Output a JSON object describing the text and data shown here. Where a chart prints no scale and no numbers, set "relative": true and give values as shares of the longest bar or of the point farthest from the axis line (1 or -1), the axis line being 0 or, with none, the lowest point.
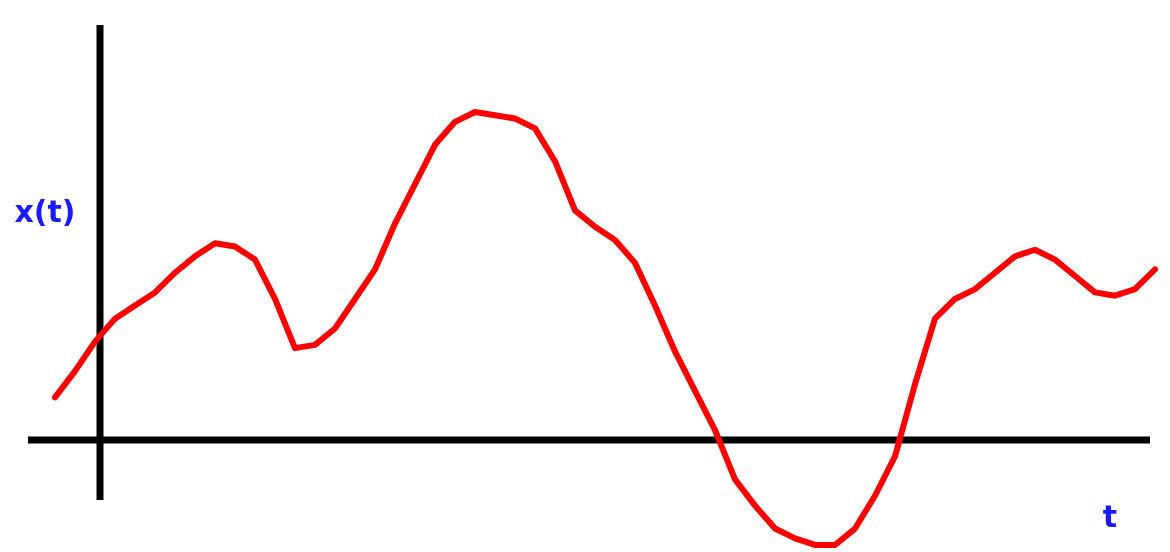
{
  "chart_data": {
    "type": "line",
    "relative": true,
    "xlabel": "t",
    "ylabel": "x(t)",
    "categories": [
      null,
      null,
      null,
      null,
      null,
      null,
      null,
      null,
      null,
      null,
      null,
      null,
      null,
      null,
      null,
      null,
      null,
      null,
      null,
      null,
      null,
      null,
      null,
      null,
      null,
      null,
      null,
      null,
      null,
      null,
      null,
      null,
      null,
      null,
      null,
      null,
      null,
      null,
      null,
      null,
      null,
      null,
      null,
      null,
      null,
      null,
      null,
      null,
      null,
      null,
      null,
      null,
      null,
      null,
      null,
      null
    ],
    "series": [
      {
        "color": "#ff0000",
        "values": [
          0.13,
          0.21,
          0.3,
          0.37,
          0.41,
          0.45,
          0.51,
          0.56,
          0.6,
          0.59,
          0.55,
          0.43,
          0.28,
          0.29,
          0.34,
          0.43,
          0.52,
          0.66,
          0.78,
          0.9,
          0.97,
          1.0,
          0.99,
          0.98,
          0.95,
          0.85,
          0.7,
          0.65,
          0.61,
          0.54,
          0.41,
          0.27,
          0.15,
          0.03,
          -0.12,
          -0.2,
          -0.27,
          -0.3,
          -0.32,
          -0.32,
          -0.27,
          -0.17,
          -0.05,
          0.17,
          0.37,
          0.43,
          0.46,
          0.51,
          0.56,
          0.58,
          0.55,
          0.5,
          0.45,
          0.44,
          0.46,
          0.52
        ]
      }
    ]
  }
}
